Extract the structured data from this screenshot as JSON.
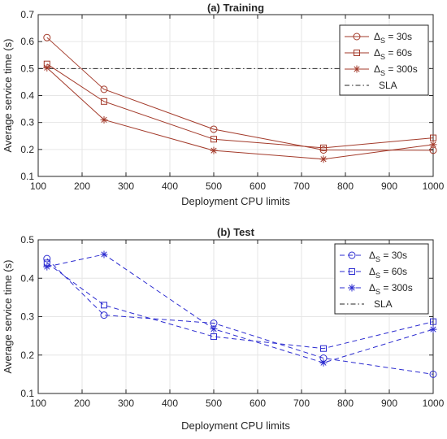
{
  "chart_data": [
    {
      "type": "line",
      "title": "(a) Training",
      "xlabel": "Deployment CPU limits",
      "ylabel": "Average service time (s)",
      "xlim": [
        100,
        1000
      ],
      "ylim": [
        0.1,
        0.7
      ],
      "xticks": [
        100,
        200,
        300,
        400,
        500,
        600,
        700,
        800,
        900,
        1000
      ],
      "yticks": [
        0.1,
        0.2,
        0.3,
        0.4,
        0.5,
        0.6,
        0.7
      ],
      "grid": true,
      "legend_position": "top-right",
      "color": "#a33a2a",
      "x": [
        120,
        250,
        500,
        750,
        1000
      ],
      "series": [
        {
          "name": "Δ_S = 30s",
          "legend": {
            "base": "Δ",
            "sub": "S",
            "rest": " = 30s"
          },
          "marker": "circle",
          "values": [
            0.615,
            0.423,
            0.275,
            0.198,
            0.197
          ]
        },
        {
          "name": "Δ_S = 60s",
          "legend": {
            "base": "Δ",
            "sub": "S",
            "rest": " = 60s"
          },
          "marker": "square",
          "values": [
            0.517,
            0.378,
            0.238,
            0.206,
            0.243
          ]
        },
        {
          "name": "Δ_S = 300s",
          "legend": {
            "base": "Δ",
            "sub": "S",
            "rest": " = 300s"
          },
          "marker": "star",
          "values": [
            0.503,
            0.31,
            0.196,
            0.164,
            0.218
          ]
        }
      ],
      "reference_line": {
        "name": "SLA",
        "y": 0.5,
        "color": "#262626"
      }
    },
    {
      "type": "line",
      "title": "(b) Test",
      "xlabel": "Deployment CPU limits",
      "ylabel": "Average service time (s)",
      "xlim": [
        100,
        1000
      ],
      "ylim": [
        0.1,
        0.5
      ],
      "xticks": [
        100,
        200,
        300,
        400,
        500,
        600,
        700,
        800,
        900,
        1000
      ],
      "yticks": [
        0.1,
        0.2,
        0.3,
        0.4,
        0.5
      ],
      "grid": true,
      "legend_position": "top-right",
      "color": "#2b2bd0",
      "x": [
        120,
        250,
        500,
        750,
        1000
      ],
      "series": [
        {
          "name": "Δ_S = 30s",
          "legend": {
            "base": "Δ",
            "sub": "S",
            "rest": " = 30s"
          },
          "marker": "circle",
          "values": [
            0.451,
            0.304,
            0.283,
            0.192,
            0.15
          ]
        },
        {
          "name": "Δ_S = 60s",
          "legend": {
            "base": "Δ",
            "sub": "S",
            "rest": " = 60s"
          },
          "marker": "square",
          "values": [
            0.44,
            0.33,
            0.248,
            0.217,
            0.287
          ]
        },
        {
          "name": "Δ_S = 300s",
          "legend": {
            "base": "Δ",
            "sub": "S",
            "rest": " = 300s"
          },
          "marker": "star",
          "values": [
            0.43,
            0.462,
            0.268,
            0.18,
            0.267
          ]
        }
      ],
      "reference_line": {
        "name": "SLA",
        "y": 0.5,
        "color": "#262626"
      }
    }
  ]
}
